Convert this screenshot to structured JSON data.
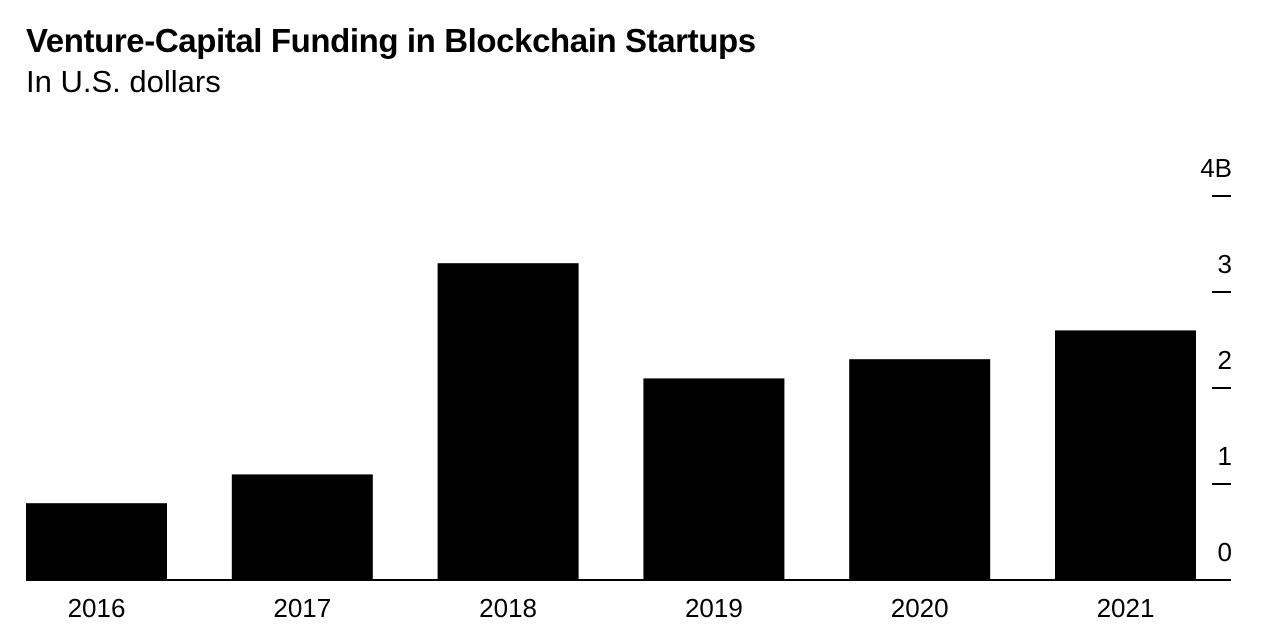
{
  "chart_data": {
    "type": "bar",
    "title": "Venture-Capital Funding in Blockchain Startups",
    "subtitle": "In U.S. dollars",
    "categories": [
      "2016",
      "2017",
      "2018",
      "2019",
      "2020",
      "2021"
    ],
    "values": [
      0.8,
      1.1,
      3.3,
      2.1,
      2.3,
      2.6
    ],
    "unit": "B",
    "ylim": [
      0,
      4
    ],
    "yticks": [
      0,
      1,
      2,
      3,
      4
    ],
    "ytick_labels": [
      "0",
      "1",
      "2",
      "3",
      "4B"
    ],
    "y_axis_side": "right",
    "grid": false,
    "bar_color": "#000000"
  }
}
